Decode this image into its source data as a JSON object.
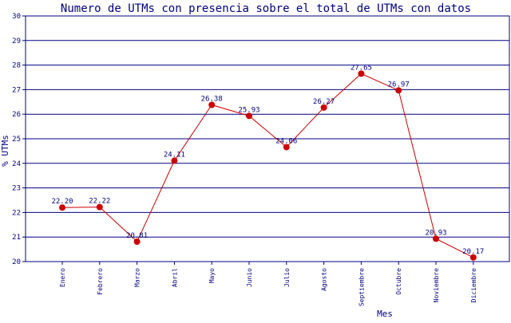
{
  "chart_data": {
    "type": "line",
    "title": "Numero de UTMs con presencia sobre el total de UTMs con datos",
    "xlabel": "Mes",
    "ylabel": "% UTMs",
    "categories": [
      "Enero",
      "Febrero",
      "Marzo",
      "Abril",
      "Mayo",
      "Junio",
      "Julio",
      "Agosto",
      "Septiembre",
      "Octubre",
      "Noviembre",
      "Diciembre"
    ],
    "values": [
      22.2,
      22.22,
      20.81,
      24.11,
      26.38,
      25.93,
      24.66,
      26.27,
      27.65,
      26.97,
      20.93,
      20.17
    ],
    "value_labels": [
      "22.20",
      "22.22",
      "20.81",
      "24.11",
      "26.38",
      "25.93",
      "24.66",
      "26.27",
      "27.65",
      "26.97",
      "20.93",
      "20.17"
    ],
    "ylim": [
      20,
      30
    ],
    "yticks": [
      "20",
      "21",
      "22",
      "23",
      "24",
      "25",
      "26",
      "27",
      "28",
      "29",
      "30"
    ],
    "grid": true,
    "legend": "none",
    "colors": {
      "line": "#cc0000",
      "marker": "#cc0000",
      "grid": "#000080",
      "text": "#000080"
    }
  }
}
